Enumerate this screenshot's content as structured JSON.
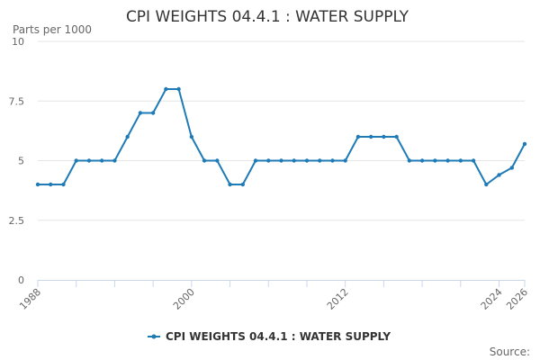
{
  "chart_data": {
    "type": "line",
    "title": "CPI WEIGHTS 04.4.1 : WATER SUPPLY",
    "ylabel": "Parts per 1000",
    "xlabel": "",
    "ylim": [
      0,
      10
    ],
    "yticks": [
      "0",
      "2.5",
      "5",
      "7.5",
      "10"
    ],
    "ytick_values": [
      0,
      2.5,
      5,
      7.5,
      10
    ],
    "xlim": [
      1988,
      2026
    ],
    "xtick_labels": [
      "1988",
      "2000",
      "2012",
      "2024",
      "2026"
    ],
    "xtick_values": [
      1988,
      2000,
      2012,
      2024,
      2026
    ],
    "xtick_minor": [
      1991,
      1994,
      1997,
      2003,
      2006,
      2009,
      2015,
      2018,
      2021
    ],
    "series": [
      {
        "name": "CPI WEIGHTS 04.4.1 : WATER SUPPLY",
        "color": "#1f7bb6",
        "x": [
          1988,
          1989,
          1990,
          1991,
          1992,
          1993,
          1994,
          1995,
          1996,
          1997,
          1998,
          1999,
          2000,
          2001,
          2002,
          2003,
          2004,
          2005,
          2006,
          2007,
          2008,
          2009,
          2010,
          2011,
          2012,
          2013,
          2014,
          2015,
          2016,
          2017,
          2018,
          2019,
          2020,
          2021,
          2022,
          2023,
          2024,
          2025,
          2026
        ],
        "values": [
          4,
          4,
          4,
          5,
          5,
          5,
          5,
          6,
          7,
          7,
          8,
          8,
          6,
          5,
          5,
          4,
          4,
          5,
          5,
          5,
          5,
          5,
          5,
          5,
          5,
          6,
          6,
          6,
          6,
          5,
          5,
          5,
          5,
          5,
          5,
          4,
          4.4,
          4.7,
          5.7
        ]
      }
    ]
  },
  "source_label": "Source:"
}
